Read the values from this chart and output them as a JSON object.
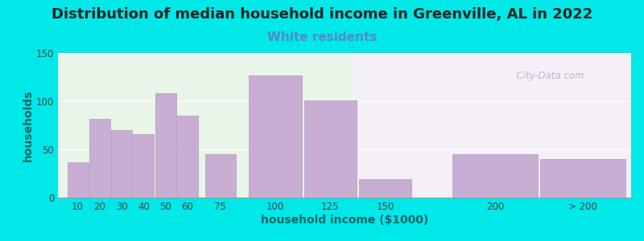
{
  "title": "Distribution of median household income in Greenville, AL in 2022",
  "subtitle": "White residents",
  "xlabel": "household income ($1000)",
  "ylabel": "households",
  "bar_labels": [
    "10",
    "20",
    "30",
    "40",
    "50",
    "60",
    "75",
    "100",
    "125",
    "150",
    "200",
    "> 200"
  ],
  "bar_values": [
    37,
    82,
    70,
    66,
    108,
    85,
    45,
    127,
    101,
    19,
    45,
    40
  ],
  "bar_color": "#c9aed4",
  "bar_edgecolor": "#b09bc0",
  "ylim": [
    0,
    150
  ],
  "yticks": [
    0,
    50,
    100,
    150
  ],
  "bg_outer": "#00e8e8",
  "bg_plot_left": "#e8f5e8",
  "bg_plot_right": "#f5f0f8",
  "title_fontsize": 13,
  "subtitle_color": "#5588cc",
  "subtitle_fontsize": 11,
  "axis_label_color": "#006666",
  "tick_label_color": "#444444",
  "watermark": "  City-Data.com",
  "watermark_color": "#b8a8c8",
  "tick_positions": [
    10,
    20,
    30,
    40,
    50,
    60,
    75,
    100,
    125,
    150,
    200,
    240
  ],
  "bar_widths": [
    9.5,
    9.5,
    9.5,
    9.5,
    9.5,
    9.5,
    14,
    24,
    24,
    24,
    39,
    39
  ]
}
